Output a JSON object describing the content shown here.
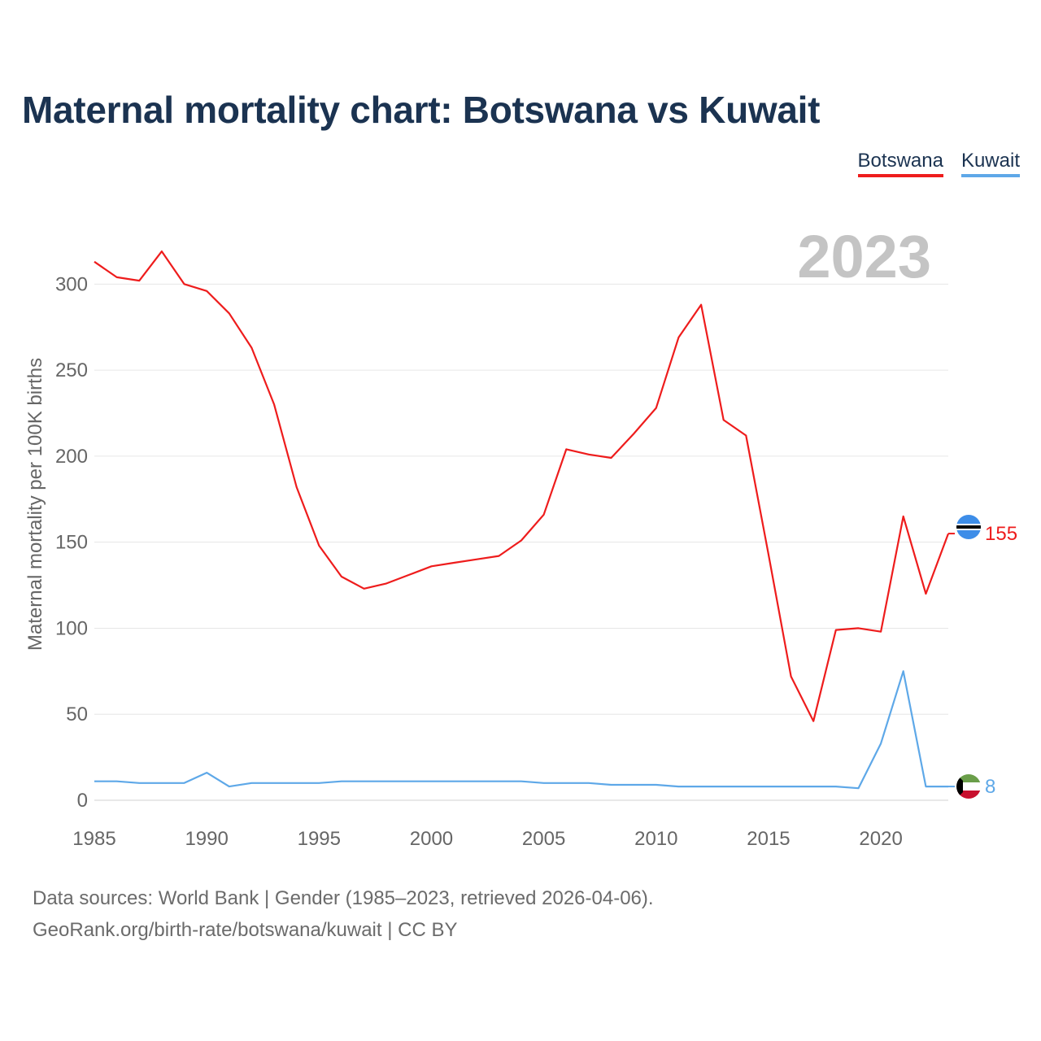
{
  "title": "Maternal mortality chart: Botswana vs Kuwait",
  "legend": [
    {
      "label": "Botswana",
      "color": "#ee1c1c"
    },
    {
      "label": "Kuwait",
      "color": "#5ea8e8"
    }
  ],
  "year_watermark": "2023",
  "source": {
    "line1": "Data sources: World Bank | Gender (1985–2023, retrieved 2026-04-06).",
    "line2": "GeoRank.org/birth-rate/botswana/kuwait | CC BY"
  },
  "chart_data": {
    "type": "line",
    "title": "Maternal mortality chart: Botswana vs Kuwait",
    "xlabel": "",
    "ylabel": "Maternal mortality per 100K births",
    "xlim": [
      1985,
      2023
    ],
    "ylim": [
      0,
      320
    ],
    "x_ticks": [
      1985,
      1990,
      1995,
      2000,
      2005,
      2010,
      2015,
      2020
    ],
    "y_ticks": [
      0,
      50,
      100,
      150,
      200,
      250,
      300
    ],
    "grid": true,
    "x": [
      1985,
      1986,
      1987,
      1988,
      1989,
      1990,
      1991,
      1992,
      1993,
      1994,
      1995,
      1996,
      1997,
      1998,
      1999,
      2000,
      2001,
      2002,
      2003,
      2004,
      2005,
      2006,
      2007,
      2008,
      2009,
      2010,
      2011,
      2012,
      2013,
      2014,
      2015,
      2016,
      2017,
      2018,
      2019,
      2020,
      2021,
      2022,
      2023
    ],
    "series": [
      {
        "name": "Botswana",
        "color": "#ee1c1c",
        "end_label": "155",
        "flag": "botswana",
        "values": [
          313,
          304,
          302,
          319,
          300,
          296,
          283,
          263,
          230,
          182,
          148,
          130,
          123,
          126,
          131,
          136,
          138,
          140,
          142,
          151,
          166,
          204,
          201,
          199,
          213,
          228,
          269,
          288,
          221,
          212,
          143,
          72,
          46,
          99,
          100,
          98,
          165,
          120,
          155
        ]
      },
      {
        "name": "Kuwait",
        "color": "#5ea8e8",
        "end_label": "8",
        "flag": "kuwait",
        "values": [
          11,
          11,
          10,
          10,
          10,
          16,
          8,
          10,
          10,
          10,
          10,
          11,
          11,
          11,
          11,
          11,
          11,
          11,
          11,
          11,
          10,
          10,
          10,
          9,
          9,
          9,
          8,
          8,
          8,
          8,
          8,
          8,
          8,
          8,
          7,
          33,
          75,
          8,
          8
        ]
      }
    ]
  }
}
